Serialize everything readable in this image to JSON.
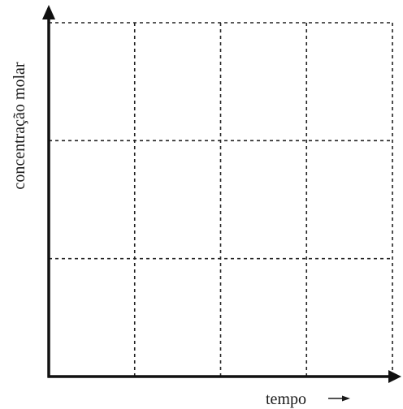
{
  "chart_data": {
    "type": "line",
    "title": "",
    "xlabel": "tempo",
    "ylabel": "concentração molar",
    "x_arrow": "→",
    "series": [],
    "grid": {
      "on": true,
      "style": "dashed",
      "columns": 4,
      "rows": 3
    },
    "axes": {
      "arrows": true,
      "tick_labels": false
    },
    "colors": {
      "axis": "#111111",
      "grid": "#222222",
      "text": "#1a1a1a"
    }
  }
}
